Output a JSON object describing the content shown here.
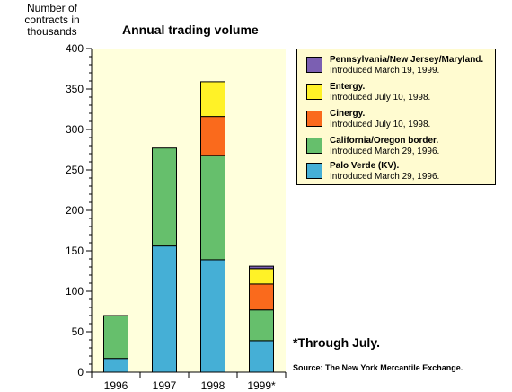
{
  "chart_data": {
    "type": "bar",
    "stacked": true,
    "title": "Annual trading volume",
    "ylabel": "Number of contracts in thousands",
    "ylim": [
      0,
      400
    ],
    "yticks": [
      "0",
      "50",
      "100",
      "150",
      "200",
      "250",
      "300",
      "350",
      "400"
    ],
    "categories": [
      "1996",
      "1997",
      "1998",
      "1999*"
    ],
    "series": [
      {
        "name": "Palo Verde (KV).",
        "note": "Introduced March 29, 1996.",
        "color": "#45afd6",
        "values": [
          17,
          156,
          139,
          39
        ]
      },
      {
        "name": "California/Oregon border.",
        "note": "Introduced March 29, 1996.",
        "color": "#66bf6c",
        "values": [
          53,
          121,
          129,
          38
        ]
      },
      {
        "name": "Cinergy.",
        "note": "Introduced July 10, 1998.",
        "color": "#fa6a1c",
        "values": [
          0,
          0,
          48,
          32
        ]
      },
      {
        "name": "Entergy.",
        "note": "Introduced July 10, 1998.",
        "color": "#fff227",
        "values": [
          0,
          0,
          43,
          19
        ]
      },
      {
        "name": "Pennsylvania/New Jersey/Maryland.",
        "note": "Introduced March 19, 1999.",
        "color": "#7b5fb2",
        "values": [
          0,
          0,
          0,
          3
        ]
      }
    ],
    "background": "#ffffdc",
    "grid": false,
    "legend_position": "right"
  },
  "footnote": "*Through July.",
  "source": "Source: The New York Mercantile Exchange."
}
